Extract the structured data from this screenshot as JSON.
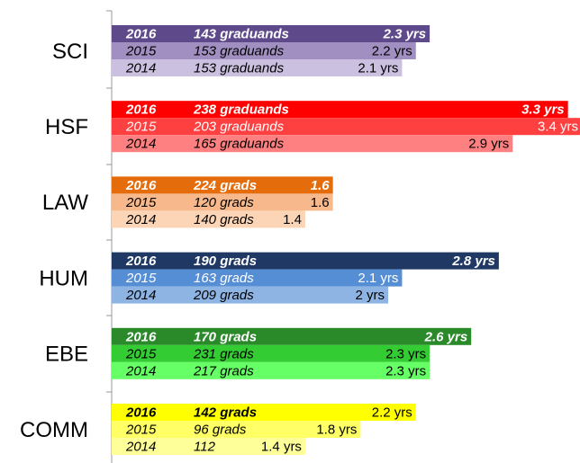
{
  "chart_data": {
    "type": "bar",
    "orientation": "horizontal",
    "categories": [
      "SCI",
      "HSF",
      "LAW",
      "HUM",
      "EBE",
      "COMM"
    ],
    "xlim": [
      0,
      3.4
    ],
    "series": [
      {
        "name": "2016",
        "colors": [
          "#5e4a8b",
          "#ff0000",
          "#e46c0a",
          "#1f3864",
          "#2a8a2a",
          "#ffff00"
        ],
        "values": [
          2.3,
          3.3,
          1.6,
          2.8,
          2.6,
          2.2
        ],
        "value_labels": [
          "2.3 yrs",
          "3.3 yrs",
          "1.6",
          "2.8 yrs",
          "2.6 yrs",
          "2.2 yrs"
        ],
        "graduates": [
          143,
          238,
          224,
          190,
          170,
          142
        ],
        "graduate_labels": [
          "143 graduands",
          "238 graduands",
          "224 grads",
          "190 grads",
          "170 grads",
          "142 grads"
        ]
      },
      {
        "name": "2015",
        "colors": [
          "#a08fc0",
          "#ff4040",
          "#f7b98b",
          "#558ed5",
          "#33cc33",
          "#ffff66"
        ],
        "values": [
          2.2,
          3.4,
          1.6,
          2.1,
          2.3,
          1.8
        ],
        "value_labels": [
          "2.2 yrs",
          "3.4 yrs",
          "1.6",
          "2.1 yrs",
          "2.3 yrs",
          "1.8 yrs"
        ],
        "graduates": [
          153,
          203,
          120,
          163,
          231,
          96
        ],
        "graduate_labels": [
          "153 graduands",
          "203 graduands",
          "120 grads",
          "163 grads",
          "231 grads",
          "96 grads"
        ]
      },
      {
        "name": "2014",
        "colors": [
          "#cbc0e0",
          "#ff8080",
          "#fbd5b5",
          "#8eb4e3",
          "#66ff66",
          "#ffff99"
        ],
        "values": [
          2.1,
          2.9,
          1.4,
          2,
          2.3,
          1.4
        ],
        "value_labels": [
          "2.1 yrs",
          "2.9 yrs",
          "1.4",
          "2 yrs",
          "2.3 yrs",
          "1.4 yrs"
        ],
        "graduates": [
          153,
          165,
          140,
          209,
          217,
          112
        ],
        "graduate_labels": [
          "153 graduands",
          "165 graduands",
          "140 grads",
          "209 grads",
          "217 grads",
          "112"
        ]
      }
    ]
  }
}
